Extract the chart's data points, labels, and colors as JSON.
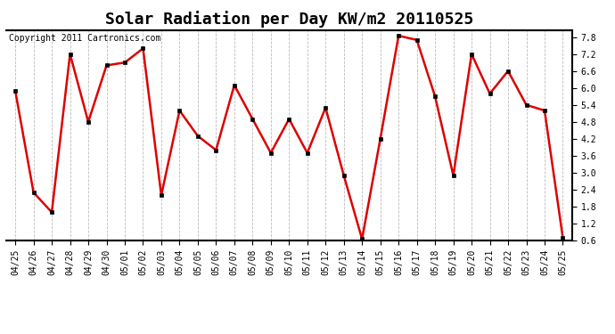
{
  "title": "Solar Radiation per Day KW/m2 20110525",
  "copyright": "Copyright 2011 Cartronics.com",
  "dates": [
    "04/25",
    "04/26",
    "04/27",
    "04/28",
    "04/29",
    "04/30",
    "05/01",
    "05/02",
    "05/03",
    "05/04",
    "05/05",
    "05/06",
    "05/07",
    "05/08",
    "05/09",
    "05/10",
    "05/11",
    "05/12",
    "05/13",
    "05/14",
    "05/15",
    "05/16",
    "05/17",
    "05/18",
    "05/19",
    "05/20",
    "05/21",
    "05/22",
    "05/23",
    "05/24",
    "05/25"
  ],
  "values": [
    5.9,
    2.3,
    1.6,
    7.2,
    4.8,
    6.8,
    6.9,
    7.4,
    2.2,
    5.2,
    4.3,
    3.8,
    6.1,
    4.9,
    3.7,
    4.9,
    3.7,
    5.3,
    2.9,
    0.65,
    4.2,
    7.85,
    7.7,
    5.7,
    2.9,
    7.2,
    5.8,
    6.6,
    5.4,
    5.2,
    0.7
  ],
  "line_color": "#dd0000",
  "marker_color": "#000000",
  "bg_color": "#ffffff",
  "grid_color": "#aaaaaa",
  "ylim_min": 0.6,
  "ylim_max": 8.05,
  "yticks": [
    0.6,
    1.2,
    1.8,
    2.4,
    3.0,
    3.6,
    4.2,
    4.8,
    5.4,
    6.0,
    6.6,
    7.2,
    7.8
  ],
  "title_fontsize": 13,
  "copyright_fontsize": 7,
  "tick_fontsize": 7
}
